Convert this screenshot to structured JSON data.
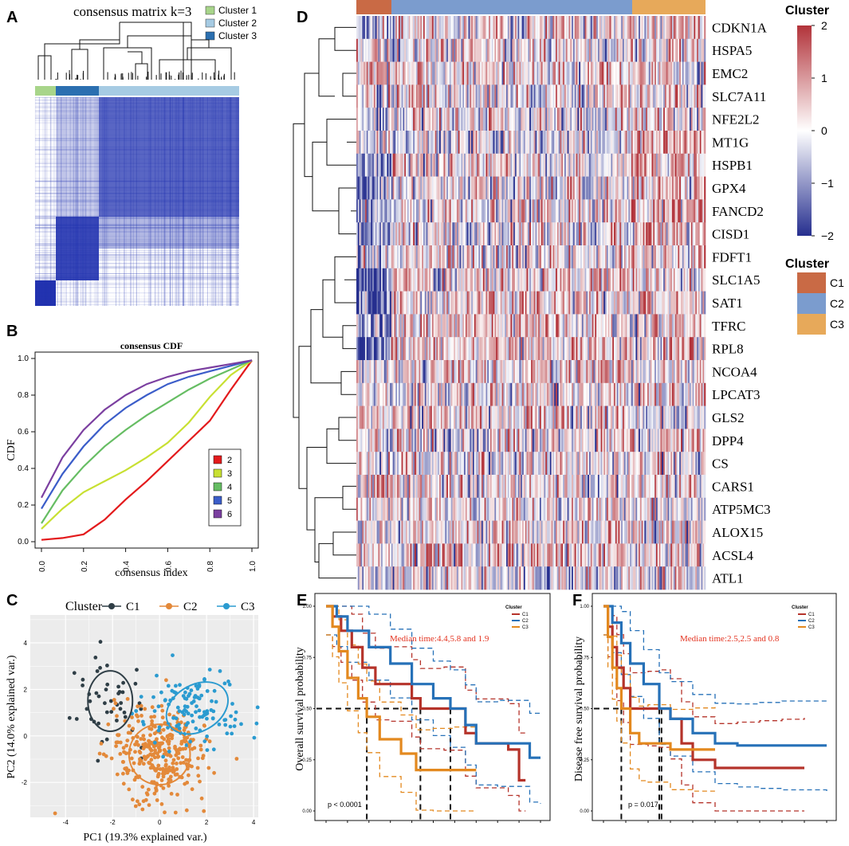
{
  "panel_labels": {
    "a": "A",
    "b": "B",
    "c": "C",
    "d": "D",
    "e": "E",
    "f": "F"
  },
  "panel_a": {
    "title": "consensus matrix k=3",
    "legend": [
      {
        "label": "Cluster 1",
        "color": "#a8d58a"
      },
      {
        "label": "Cluster 2",
        "color": "#a6cbe3"
      },
      {
        "label": "Cluster 3",
        "color": "#2b6fb0"
      }
    ]
  },
  "colors": {
    "consensus_blue": "#2233b0",
    "heat_red": "#b2333a",
    "heat_blue": "#262f8f",
    "c1": "#c96a45",
    "c2": "#7b9cce",
    "c3": "#e7a95a",
    "km_c1": "#b5332a",
    "km_c2": "#2671b8",
    "km_c3": "#e3891f",
    "pca_c1": "#2f3e46",
    "pca_c2": "#e3893a",
    "pca_c3": "#2b9bd0"
  },
  "chart_data": [
    {
      "type": "line",
      "panel": "B",
      "title": "consensus CDF",
      "xlabel": "consensus index",
      "ylabel": "CDF",
      "xlim": [
        0,
        1
      ],
      "ylim": [
        0,
        1
      ],
      "xticks": [
        "0.0",
        "0.2",
        "0.4",
        "0.6",
        "0.8",
        "1.0"
      ],
      "yticks": [
        "0.0",
        "0.2",
        "0.4",
        "0.6",
        "0.8",
        "1.0"
      ],
      "series": [
        {
          "name": "2",
          "color": "#e31a1c",
          "x": [
            0,
            0.1,
            0.2,
            0.3,
            0.4,
            0.5,
            0.6,
            0.7,
            0.8,
            0.9,
            1.0
          ],
          "y": [
            0.01,
            0.02,
            0.04,
            0.12,
            0.23,
            0.33,
            0.44,
            0.55,
            0.66,
            0.83,
            0.99
          ]
        },
        {
          "name": "3",
          "color": "#c8e032",
          "x": [
            0,
            0.1,
            0.2,
            0.3,
            0.4,
            0.5,
            0.6,
            0.7,
            0.8,
            0.9,
            1.0
          ],
          "y": [
            0.07,
            0.18,
            0.27,
            0.33,
            0.39,
            0.46,
            0.54,
            0.65,
            0.79,
            0.91,
            0.99
          ]
        },
        {
          "name": "4",
          "color": "#66bd63",
          "x": [
            0,
            0.1,
            0.2,
            0.3,
            0.4,
            0.5,
            0.6,
            0.7,
            0.8,
            0.9,
            1.0
          ],
          "y": [
            0.1,
            0.28,
            0.41,
            0.52,
            0.61,
            0.69,
            0.76,
            0.83,
            0.89,
            0.94,
            0.99
          ]
        },
        {
          "name": "5",
          "color": "#3b5dc9",
          "x": [
            0,
            0.1,
            0.2,
            0.3,
            0.4,
            0.5,
            0.6,
            0.7,
            0.8,
            0.9,
            1.0
          ],
          "y": [
            0.18,
            0.37,
            0.52,
            0.64,
            0.73,
            0.8,
            0.86,
            0.9,
            0.93,
            0.96,
            0.99
          ]
        },
        {
          "name": "6",
          "color": "#7b3fa0",
          "x": [
            0,
            0.1,
            0.2,
            0.3,
            0.4,
            0.5,
            0.6,
            0.7,
            0.8,
            0.9,
            1.0
          ],
          "y": [
            0.24,
            0.46,
            0.61,
            0.72,
            0.8,
            0.86,
            0.9,
            0.93,
            0.95,
            0.97,
            0.99
          ]
        }
      ]
    },
    {
      "type": "scatter",
      "panel": "C",
      "legend_title": "Cluster",
      "xlabel": "PC1 (19.3% explained var.)",
      "ylabel": "PC2 (14.0% explained var.)",
      "xlim": [
        -5.5,
        4.2
      ],
      "ylim": [
        -3.5,
        5.2
      ],
      "xticks": [
        "-4",
        "-2",
        "0",
        "2",
        "4"
      ],
      "yticks": [
        "-2",
        "0",
        "2",
        "4"
      ],
      "series": [
        {
          "name": "C1",
          "color": "#2f3e46",
          "center": [
            -2.1,
            1.5
          ],
          "radius": [
            0.95,
            1.3
          ],
          "count": 45
        },
        {
          "name": "C2",
          "color": "#e3893a",
          "center": [
            0,
            -0.8
          ],
          "radius": [
            1.3,
            1.3
          ],
          "count": 330
        },
        {
          "name": "C3",
          "color": "#2b9bd0",
          "center": [
            1.6,
            1.2
          ],
          "radius": [
            1.4,
            1.0
          ],
          "count": 120
        }
      ]
    },
    {
      "type": "heatmap",
      "panel": "D",
      "legend_title": "Cluster",
      "scale_ticks": [
        "2",
        "1",
        "0",
        "−1",
        "−2"
      ],
      "clusters": [
        "C1",
        "C2",
        "C3"
      ],
      "genes": [
        "CDKN1A",
        "HSPA5",
        "EMC2",
        "SLC7A11",
        "NFE2L2",
        "MT1G",
        "HSPB1",
        "GPX4",
        "FANCD2",
        "CISD1",
        "FDFT1",
        "SLC1A5",
        "SAT1",
        "TFRC",
        "RPL8",
        "NCOA4",
        "LPCAT3",
        "GLS2",
        "DPP4",
        "CS",
        "CARS1",
        "ATP5MC3",
        "ALOX15",
        "ACSL4",
        "ATL1"
      ]
    },
    {
      "type": "line",
      "panel": "E",
      "ylabel": "Overall survival probability",
      "annotation": "Median time:4.4,5.8 and 1.9",
      "pvalue": "p < 0.0001",
      "legend_title": "Cluster",
      "yticks": [
        "0.00",
        "0.25",
        "0.50",
        "0.75",
        "1.00"
      ],
      "ylim": [
        0,
        1
      ],
      "xlim": [
        0,
        10
      ],
      "series": [
        {
          "name": "C1",
          "color": "#b5332a",
          "x": [
            0,
            0.3,
            0.7,
            1.2,
            1.7,
            2.3,
            3,
            4,
            4.4,
            5.5,
            6.5,
            7,
            8.5,
            9,
            9.3
          ],
          "y": [
            1,
            0.95,
            0.88,
            0.8,
            0.7,
            0.62,
            0.62,
            0.55,
            0.5,
            0.5,
            0.38,
            0.33,
            0.3,
            0.15,
            0.15
          ]
        },
        {
          "name": "C2",
          "color": "#2671b8",
          "x": [
            0,
            0.5,
            1,
            2,
            3,
            4,
            5,
            5.8,
            6.5,
            7,
            8,
            9.5,
            10
          ],
          "y": [
            1,
            0.95,
            0.88,
            0.8,
            0.72,
            0.62,
            0.55,
            0.5,
            0.42,
            0.33,
            0.33,
            0.26,
            0.26
          ]
        },
        {
          "name": "C3",
          "color": "#e3891f",
          "x": [
            0,
            0.3,
            0.6,
            1,
            1.5,
            1.9,
            2.5,
            3.5,
            4.2,
            5,
            6,
            7
          ],
          "y": [
            1,
            0.9,
            0.78,
            0.65,
            0.55,
            0.46,
            0.35,
            0.28,
            0.2,
            0.2,
            0.2,
            0.2
          ]
        }
      ]
    },
    {
      "type": "line",
      "panel": "F",
      "ylabel": "Disease free survival probability",
      "annotation": "Median time:2.5,2.5 and 0.8",
      "pvalue": "p = 0.017",
      "legend_title": "Cluster",
      "yticks": [
        "0.00",
        "0.25",
        "0.50",
        "0.75",
        "1.00"
      ],
      "ylim": [
        0,
        1
      ],
      "xlim": [
        0,
        10
      ],
      "series": [
        {
          "name": "C1",
          "color": "#b5332a",
          "x": [
            0,
            0.2,
            0.4,
            0.6,
            0.9,
            1.2,
            2,
            2.5,
            3,
            3.5,
            4,
            5,
            6,
            7,
            8,
            9
          ],
          "y": [
            1,
            0.9,
            0.8,
            0.7,
            0.6,
            0.5,
            0.5,
            0.5,
            0.45,
            0.33,
            0.25,
            0.21,
            0.21,
            0.21,
            0.21,
            0.21
          ]
        },
        {
          "name": "C2",
          "color": "#2671b8",
          "x": [
            0,
            0.4,
            0.8,
            1.2,
            1.8,
            2.5,
            3,
            4,
            5,
            6,
            7,
            8,
            10
          ],
          "y": [
            1,
            0.92,
            0.82,
            0.72,
            0.62,
            0.5,
            0.45,
            0.38,
            0.33,
            0.32,
            0.32,
            0.32,
            0.32
          ]
        },
        {
          "name": "C3",
          "color": "#e3891f",
          "x": [
            0,
            0.2,
            0.4,
            0.6,
            0.8,
            1.2,
            1.6,
            2,
            3,
            4,
            5
          ],
          "y": [
            1,
            0.85,
            0.7,
            0.6,
            0.5,
            0.38,
            0.33,
            0.33,
            0.3,
            0.3,
            0.3
          ]
        }
      ]
    }
  ]
}
